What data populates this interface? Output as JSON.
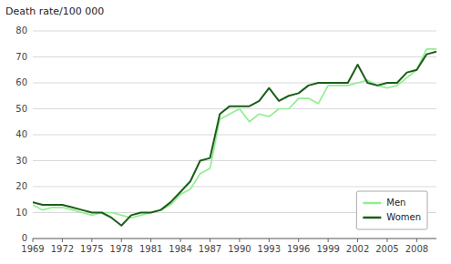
{
  "chart_data": {
    "type": "line",
    "y_label": "Death rate/100 000",
    "x": [
      1969,
      1970,
      1971,
      1972,
      1973,
      1974,
      1975,
      1976,
      1977,
      1978,
      1979,
      1980,
      1981,
      1982,
      1983,
      1984,
      1985,
      1986,
      1987,
      1988,
      1989,
      1990,
      1991,
      1992,
      1993,
      1994,
      1995,
      1996,
      1997,
      1998,
      1999,
      2000,
      2001,
      2002,
      2003,
      2004,
      2005,
      2006,
      2007,
      2008,
      2009,
      2010
    ],
    "series": [
      {
        "name": "Men",
        "color": "#90EE90",
        "values": [
          13,
          11,
          12,
          12,
          11,
          10,
          9,
          10,
          10,
          9,
          8,
          9,
          10,
          11,
          13,
          17,
          19,
          25,
          27,
          46,
          48,
          50,
          45,
          48,
          47,
          50,
          50,
          54,
          54,
          52,
          59,
          59,
          59,
          60,
          61,
          59,
          58,
          59,
          62,
          65,
          73,
          73
        ]
      },
      {
        "name": "Women",
        "color": "#1a5e1a",
        "values": [
          14,
          13,
          13,
          13,
          12,
          11,
          10,
          10,
          8,
          5,
          9,
          10,
          10,
          11,
          14,
          18,
          22,
          30,
          31,
          48,
          51,
          51,
          51,
          53,
          58,
          53,
          55,
          56,
          59,
          60,
          60,
          60,
          60,
          67,
          60,
          59,
          60,
          60,
          64,
          65,
          71,
          72
        ]
      }
    ],
    "xlim": [
      1969,
      2010
    ],
    "xticks": [
      1969,
      1972,
      1975,
      1978,
      1981,
      1984,
      1987,
      1990,
      1993,
      1996,
      1999,
      2002,
      2005,
      2008
    ],
    "ylim": [
      0,
      80
    ],
    "yticks": [
      0,
      10,
      20,
      30,
      40,
      50,
      60,
      70,
      80
    ],
    "grid": true,
    "legend": "lower right"
  }
}
